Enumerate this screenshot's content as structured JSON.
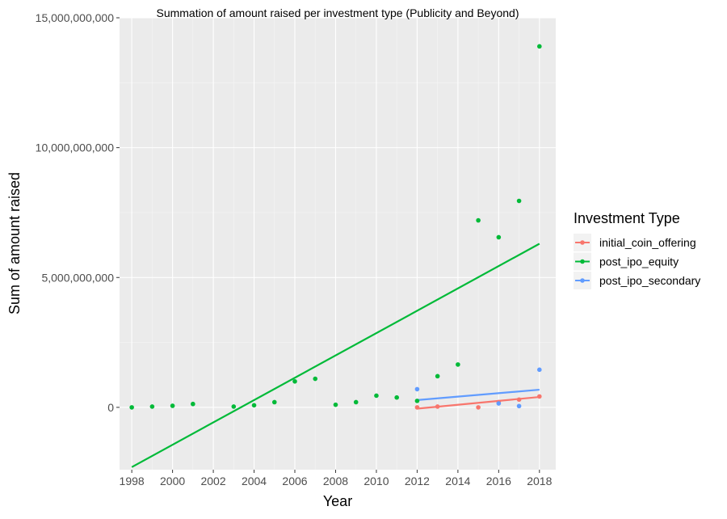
{
  "chart_data": {
    "type": "scatter",
    "title": "Summation of amount raised per investment type (Publicity and Beyond)",
    "xlabel": "Year",
    "ylabel": "Sum of amount raised",
    "xlim": [
      1997.4,
      2018.8
    ],
    "ylim": [
      -2400000000,
      15000000000
    ],
    "x_ticks": [
      1998,
      2000,
      2002,
      2004,
      2006,
      2008,
      2010,
      2012,
      2014,
      2016,
      2018
    ],
    "x_tick_labels": [
      "1998",
      "2000",
      "2002",
      "2004",
      "2006",
      "2008",
      "2010",
      "2012",
      "2014",
      "2016",
      "2018"
    ],
    "y_ticks": [
      0,
      5000000000,
      10000000000,
      15000000000
    ],
    "y_tick_labels": [
      "0",
      "5,000,000,000",
      "10,000,000,000",
      "15,000,000,000"
    ],
    "grid": true,
    "legend": {
      "title": "Investment Type",
      "position": "right"
    },
    "series": [
      {
        "name": "initial_coin_offering",
        "color": "#F8766D",
        "points": [
          {
            "x": 2012,
            "y": 0
          },
          {
            "x": 2013,
            "y": 30000000
          },
          {
            "x": 2015,
            "y": 0
          },
          {
            "x": 2016,
            "y": 200000000
          },
          {
            "x": 2017,
            "y": 300000000
          },
          {
            "x": 2018,
            "y": 420000000
          }
        ],
        "trend": {
          "x": [
            2012,
            2018
          ],
          "y": [
            -50000000,
            400000000
          ]
        }
      },
      {
        "name": "post_ipo_equity",
        "color": "#00BA38",
        "points": [
          {
            "x": 1998,
            "y": 0
          },
          {
            "x": 1999,
            "y": 30000000
          },
          {
            "x": 2000,
            "y": 60000000
          },
          {
            "x": 2001,
            "y": 130000000
          },
          {
            "x": 2003,
            "y": 30000000
          },
          {
            "x": 2004,
            "y": 80000000
          },
          {
            "x": 2005,
            "y": 200000000
          },
          {
            "x": 2006,
            "y": 1000000000
          },
          {
            "x": 2007,
            "y": 1100000000
          },
          {
            "x": 2008,
            "y": 100000000
          },
          {
            "x": 2009,
            "y": 200000000
          },
          {
            "x": 2010,
            "y": 450000000
          },
          {
            "x": 2011,
            "y": 380000000
          },
          {
            "x": 2012,
            "y": 250000000
          },
          {
            "x": 2013,
            "y": 1200000000
          },
          {
            "x": 2014,
            "y": 1650000000
          },
          {
            "x": 2015,
            "y": 7200000000
          },
          {
            "x": 2016,
            "y": 6550000000
          },
          {
            "x": 2017,
            "y": 7950000000
          },
          {
            "x": 2018,
            "y": 13900000000
          }
        ],
        "trend": {
          "x": [
            1998,
            2018
          ],
          "y": [
            -2300000000,
            6300000000
          ]
        }
      },
      {
        "name": "post_ipo_secondary",
        "color": "#619CFF",
        "points": [
          {
            "x": 2012,
            "y": 700000000
          },
          {
            "x": 2016,
            "y": 150000000
          },
          {
            "x": 2017,
            "y": 50000000
          },
          {
            "x": 2018,
            "y": 1450000000
          }
        ],
        "trend": {
          "x": [
            2012,
            2018
          ],
          "y": [
            280000000,
            680000000
          ]
        }
      }
    ]
  }
}
